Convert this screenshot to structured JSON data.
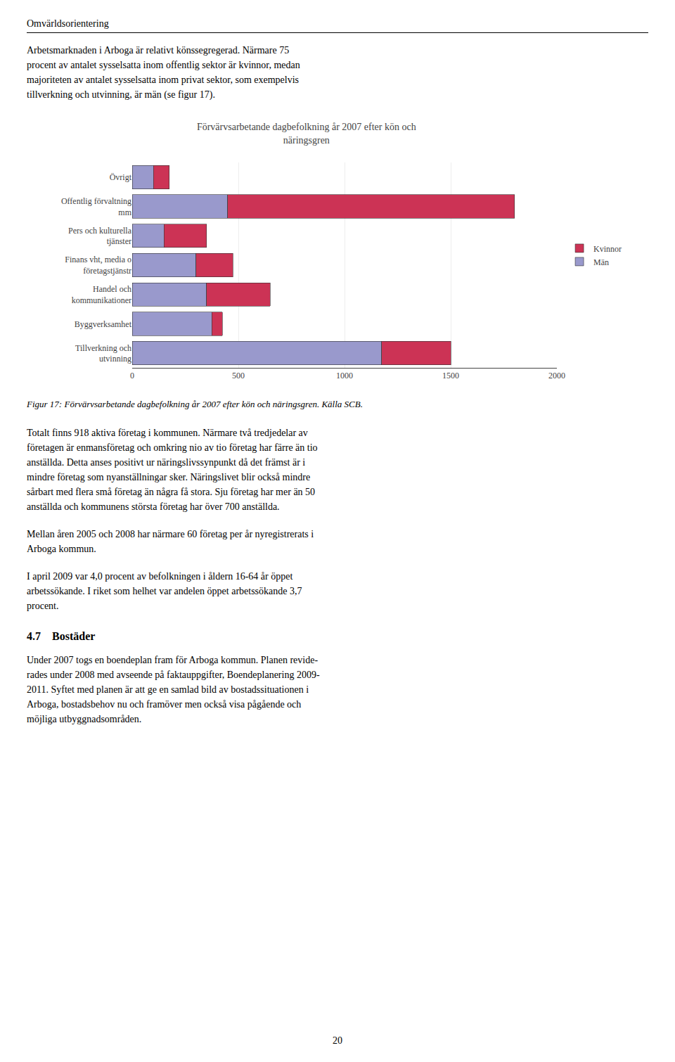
{
  "chart_data": {
    "type": "bar",
    "orientation": "horizontal",
    "stacked": true,
    "title": "Förvärvsarbetande dagbefolkning år 2007 efter kön och\nnäringsgren",
    "categories": [
      "Tillverkning och\nutvinning",
      "Byggverksamhet",
      "Handel och\nkommunikationer",
      "Finans vht, media o\nföretagstjänstr",
      "Pers och kulturella\ntjänster",
      "Offentlig förvaltning\nmm",
      "Övrigt"
    ],
    "series": [
      {
        "name": "Män",
        "color": "#9999cc",
        "values": [
          1175,
          375,
          350,
          300,
          150,
          450,
          100
        ]
      },
      {
        "name": "Kvinnor",
        "color": "#cc3355",
        "values": [
          325,
          50,
          300,
          175,
          200,
          1350,
          75
        ]
      }
    ],
    "xlim": [
      0,
      2000
    ],
    "xticks": [
      0,
      500,
      1000,
      1500,
      2000
    ],
    "grid": true,
    "legend": "right",
    "annotations": [
      "Omvärldsorientering",
      "Arbetsmarknaden i Arboga är relativt könssegregerad. Närmare 75\nprocent av antalet sysselsatta inom offentlig sektor är kvinnor, medan\nmajoriteten av antalet sysselsatta inom privat sektor, som exempelvis\ntillverkning och utvinning, är män (se figur 17).",
      "Figur 17: Förvärvsarbetande dagbefolkning år 2007 efter kön och näringsgren. Källa SCB.",
      "Totalt finns 918 aktiva företag i kommunen. Närmare två tredjedelar av\nföretagen är enmansföretag och omkring nio av tio företag har färre än tio\nanställda. Detta anses positivt ur näringslivssynpunkt då det främst är i\nmindre företag som nyanställningar sker. Näringslivet blir också mindre\nsårbart med flera små företag än några få stora. Sju företag har mer än 50\nanställda och kommunens största företag har över 700 anställda.",
      "Mellan åren 2005 och 2008 har närmare 60 företag per år nyregistrerats i\nArboga kommun.",
      "I april 2009 var 4,0 procent av befolkningen i åldern 16-64 år öppet\narbetssökande. I riket som helhet var andelen öppet arbetssökande 3,7\nprocent.",
      "4.7    Bostäder",
      "Under 2007 togs en boendeplan fram för Arboga kommun. Planen revide-\nrades under 2008 med avseende på faktauppgifter, Boendeplanering 2009-\n2011. Syftet med planen är att ge en samlad bild av bostadssituationen i\nArboga, bostadsbehov nu och framöver men också visa pågående och\nmöjliga utbyggnadsområden.",
      "20"
    ]
  }
}
